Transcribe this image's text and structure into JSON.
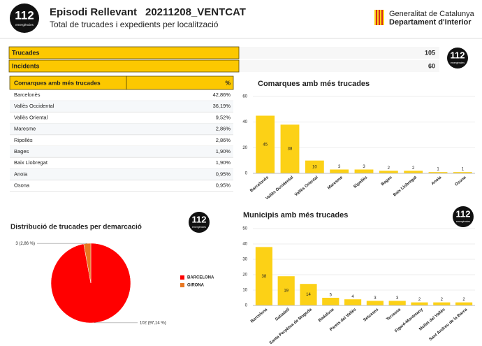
{
  "header": {
    "logo": {
      "number": "112",
      "caption": "emergències"
    },
    "title": "Episodi Rellevant",
    "code": "20211208_VENTCAT",
    "subtitle": "Total de trucades i expedients per localització",
    "org": {
      "line1": "Generalitat de Catalunya",
      "line2": "Departament d'Interior"
    }
  },
  "summary": [
    {
      "label": "Trucades",
      "value": 105
    },
    {
      "label": "Incidents",
      "value": 60
    }
  ],
  "table": {
    "header": [
      "Comarques amb més trucades",
      "%"
    ],
    "rows": [
      [
        "Barcelonès",
        "42,86%"
      ],
      [
        "Vallès Occidental",
        "36,19%"
      ],
      [
        "Vallès Oriental",
        "9,52%"
      ],
      [
        "Maresme",
        "2,86%"
      ],
      [
        "Ripollès",
        "2,86%"
      ],
      [
        "Bages",
        "1,90%"
      ],
      [
        "Baix Llobregat",
        "1,90%"
      ],
      [
        "Anoia",
        "0,95%"
      ],
      [
        "Osona",
        "0,95%"
      ]
    ]
  },
  "chart_data": [
    {
      "type": "bar",
      "title": "Comarques amb més trucades",
      "color": "#fcd116",
      "categories": [
        "Barcelonès",
        "Vallès Occidental",
        "Vallès Oriental",
        "Maresme",
        "Ripollès",
        "Bages",
        "Baix Llobregat",
        "Anoia",
        "Osona"
      ],
      "values": [
        45,
        38,
        10,
        3,
        3,
        2,
        2,
        1,
        1
      ],
      "ylim": [
        0,
        60
      ],
      "yticks": [
        0,
        20,
        40,
        60
      ]
    },
    {
      "type": "bar",
      "title": "Municipis amb més trucades",
      "color": "#fcd116",
      "categories": [
        "Barcelona",
        "Sabadell",
        "Santa Perpètua de Mogoda",
        "Badalona",
        "Parets del Vallès",
        "Setcases",
        "Terrassa",
        "Figaró-Montmany",
        "Mollet del Vallès",
        "Sant Andreu de la Barca"
      ],
      "values": [
        38,
        19,
        14,
        5,
        4,
        3,
        3,
        2,
        2,
        2
      ],
      "ylim": [
        0,
        50
      ],
      "yticks": [
        0,
        10,
        20,
        30,
        40,
        50
      ]
    },
    {
      "type": "pie",
      "title": "Distribució de trucades per demarcació",
      "categories": [
        "BARCELONA",
        "GIRONA"
      ],
      "values": [
        102,
        3
      ],
      "value_labels": [
        "102 (97,14 %)",
        "3 (2,86 %)"
      ],
      "colors": [
        "#ff0000",
        "#e87722"
      ]
    }
  ]
}
